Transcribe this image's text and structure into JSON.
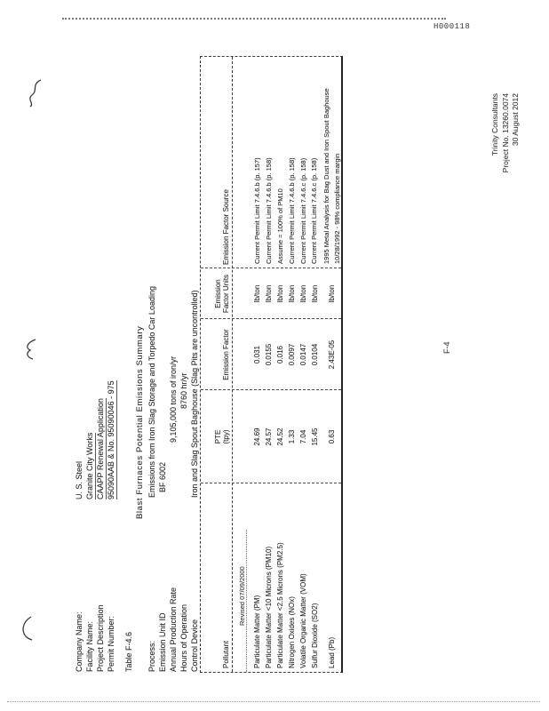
{
  "stamp": "H000118",
  "page_number": "F-4",
  "info": {
    "rows": [
      {
        "label": "Company Name:",
        "value": "U. S. Steel",
        "underline": false
      },
      {
        "label": "Facility Name:",
        "value": "Granite City Works",
        "underline": true
      },
      {
        "label": "Project Description",
        "value": "CAAPP Renewal Application",
        "underline": true
      },
      {
        "label": "Permit Number:",
        "value": "95090AAB & No. 95090046 - 975",
        "underline": true
      }
    ],
    "table_label": "Table F-4.6",
    "table_title": "Blast Furnaces Potential Emissions Summary",
    "details": [
      {
        "label": "Process:",
        "value": "Emissions from Iron Slag Storage and Torpedo Car Loading"
      },
      {
        "label": "Emission Unit ID",
        "value": "BF 6002"
      },
      {
        "label": "Annual Production Rate",
        "value": "9,105,000 tons of iron/yr"
      },
      {
        "label": "Hours of Operation",
        "value": "8760 hr/yr"
      },
      {
        "label": "Control Device",
        "value": "Iron and Slag Spout Baghouse (Slag Pits are uncontrolled)"
      }
    ]
  },
  "table": {
    "headers": {
      "pollutant": "Pollutant",
      "pte_line1": "PTE",
      "pte_line2": "(tpy)",
      "ef": "Emission Factor",
      "units_line1": "Emission",
      "units_line2": "Factor Units",
      "source": "Emission Factor Source"
    },
    "note_row": "Revised 07/09/2000",
    "rows": [
      {
        "pollutant": "Particulate Matter (PM)",
        "pte": "24.69",
        "ef": "0.031",
        "units": "lb/ton",
        "source": "Current Permit Limit 7.4.6.b (p. 157)",
        "source2": ""
      },
      {
        "pollutant": "Particulate Matter <10 Microns (PM10)",
        "pte": "24.57",
        "ef": "0.0155",
        "units": "lb/ton",
        "source": "Current Permit Limit 7.4.6.b (p. 158)",
        "source2": ""
      },
      {
        "pollutant": "Particulate Matter <2.5 Microns (PM2.5)",
        "pte": "24.52",
        "ef": "0.016",
        "units": "lb/ton",
        "source": "Assume = 100% of PM10",
        "source2": ""
      },
      {
        "pollutant": "Nitrogen Oxides (NOx)",
        "pte": "1.33",
        "ef": "0.0097",
        "units": "lb/ton",
        "source": "Current Permit Limit 7.4.6.b (p. 158)",
        "source2": ""
      },
      {
        "pollutant": "Volatile Organic Matter (VOM)",
        "pte": "7.04",
        "ef": "0.0147",
        "units": "lb/ton",
        "source": "Current Permit Limit 7.4.6.c (p. 158)",
        "source2": ""
      },
      {
        "pollutant": "Sulfur Dioxide (SO2)",
        "pte": "15.45",
        "ef": "0.0104",
        "units": "lb/ton",
        "source": "Current Permit Limit 7.4.6.c (p. 158)",
        "source2": ""
      },
      {
        "pollutant": "Lead (Pb)",
        "pte": "0.63",
        "ef": "2.43E-05",
        "units": "lb/ton",
        "source": "1995 Metal Analysis for Bag Dust and Iron Spout Baghouse",
        "source2": "10/28/1992 - 98% compliance margin"
      }
    ]
  },
  "footer": {
    "lines": [
      "Trinity Consultants",
      "Project No. 13260.0074",
      "30 August 2012"
    ]
  }
}
